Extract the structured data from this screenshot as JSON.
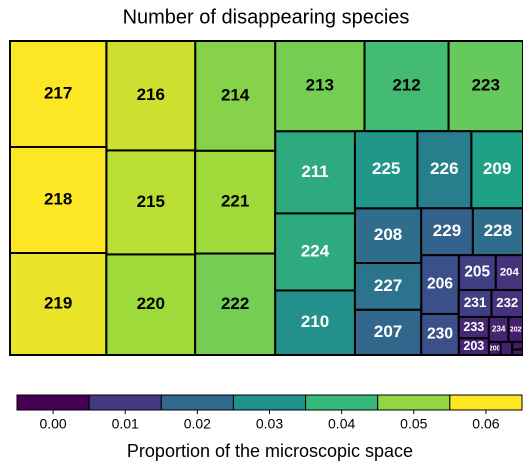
{
  "chart_data": {
    "type": "treemap",
    "title": "Number of disappearing species",
    "categories": [
      "200",
      null,
      "202",
      "203",
      "204",
      "205",
      "206",
      "207",
      "208",
      "209",
      "210",
      "211",
      "212",
      "213",
      "214",
      "215",
      "216",
      "217",
      "218",
      "219",
      "220",
      "221",
      "222",
      "223",
      "224",
      "225",
      "226",
      "227",
      "228",
      "229",
      "230",
      "231",
      "232",
      "233",
      "234",
      null,
      null
    ],
    "sizes": [
      150,
      60,
      360,
      500,
      940,
      1270,
      2180,
      2960,
      3580,
      3930,
      5080,
      6470,
      7480,
      7950,
      8660,
      9120,
      9580,
      10070,
      10070,
      9690,
      8810,
      8100,
      8000,
      6620,
      6060,
      4750,
      4090,
      3050,
      2320,
      2380,
      1520,
      870,
      840,
      630,
      480,
      150,
      80
    ],
    "values": [
      0.0,
      0.0,
      0.001,
      0.002,
      0.005,
      0.008,
      0.012,
      0.018,
      0.02,
      0.035,
      0.03,
      0.038,
      0.043,
      0.05,
      0.052,
      0.058,
      0.06,
      0.065,
      0.065,
      0.063,
      0.055,
      0.055,
      0.05,
      0.048,
      0.038,
      0.032,
      0.025,
      0.022,
      0.02,
      0.017,
      0.012,
      0.008,
      0.005,
      0.003,
      0.002,
      0.001,
      0.0
    ],
    "colorbar_label": "Proportion of the microscopic space",
    "clim": [
      -0.005,
      0.065
    ],
    "cticks": [
      {
        "value": 0,
        "label": "0.00"
      },
      {
        "value": 0.01,
        "label": "0.01"
      },
      {
        "value": 0.02,
        "label": "0.02"
      },
      {
        "value": 0.03,
        "label": "0.03"
      },
      {
        "value": 0.04,
        "label": "0.04"
      },
      {
        "value": 0.05,
        "label": "0.05"
      },
      {
        "value": 0.06,
        "label": "0.06"
      }
    ],
    "colorbar_colors": [
      "#440154",
      "#443983",
      "#31688e",
      "#21918c",
      "#35b779",
      "#90d743",
      "#fde725"
    ]
  }
}
